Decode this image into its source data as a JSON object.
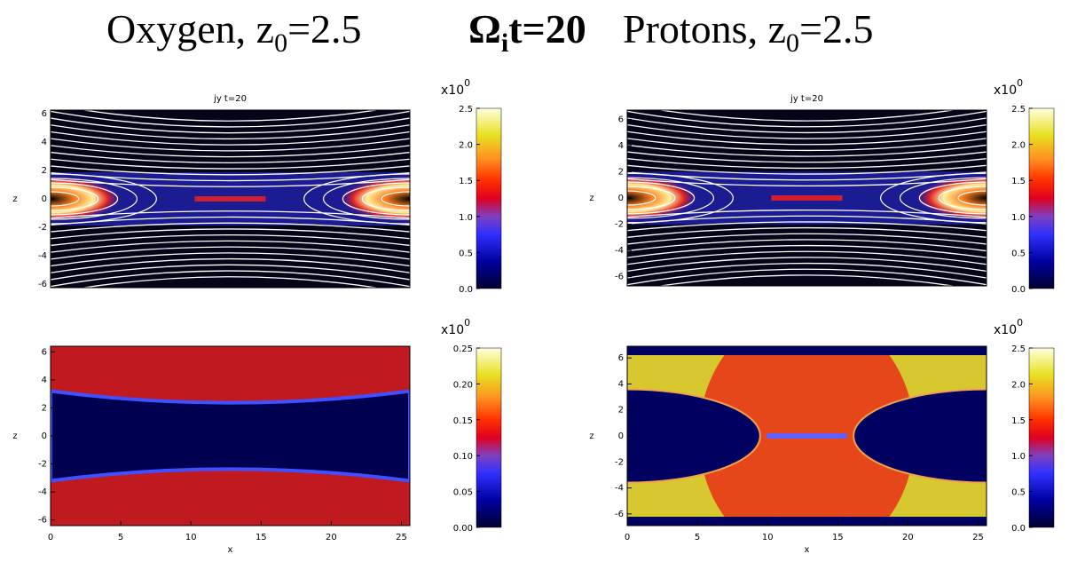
{
  "title": {
    "left": {
      "text": "Oxygen, z",
      "sub": "0",
      "rest": "=2.5"
    },
    "middle": {
      "text": "Ω",
      "sub": "i",
      "rest": "t=20"
    },
    "right": {
      "text": "Protons, z",
      "sub": "0",
      "rest": "=2.5"
    }
  },
  "panels": [
    {
      "title": "jy t=20",
      "xlim": [
        0,
        25.6
      ],
      "ylim": [
        -6.25,
        6.25
      ],
      "yticks": [
        -6,
        -4,
        -2,
        0,
        2,
        4,
        6
      ],
      "ylabel": "z",
      "colorbar": {
        "exponent": {
          "base": "x10",
          "power": "0"
        },
        "lim": [
          0,
          2.5
        ],
        "ticks": [
          {
            "value": 0,
            "label": "0.0"
          },
          0.5,
          {
            "value": 1,
            "label": "1.0"
          },
          1.5,
          {
            "value": 2,
            "label": "2.0"
          },
          2.5
        ]
      }
    },
    {
      "title": "jy t=20",
      "xlim": [
        0,
        25.6
      ],
      "ylim": [
        -6.7,
        6.7
      ],
      "yticks": [
        -6,
        -4,
        -2,
        0,
        2,
        4,
        6
      ],
      "ylabel": "z",
      "colorbar": {
        "exponent": {
          "base": "x10",
          "power": "0"
        },
        "lim": [
          0,
          2.5
        ],
        "ticks": [
          {
            "value": 0,
            "label": "0.0"
          },
          0.5,
          {
            "value": 1,
            "label": "1.0"
          },
          1.5,
          {
            "value": 2,
            "label": "2.0"
          },
          2.5
        ]
      }
    },
    {
      "xlim": [
        0,
        25.6
      ],
      "ylim": [
        -6.4,
        6.4
      ],
      "xticks": [
        0,
        5,
        10,
        15,
        20,
        25
      ],
      "yticks": [
        -6,
        -4,
        -2,
        0,
        2,
        4,
        6
      ],
      "xlabel": "x",
      "ylabel": "z",
      "colorbar": {
        "exponent": {
          "base": "x10",
          "power": "0"
        },
        "lim": [
          0,
          0.25
        ],
        "ticks": [
          {
            "value": 0,
            "label": "0.00"
          },
          0.05,
          {
            "value": 0.1,
            "label": "0.10"
          },
          0.15,
          {
            "value": 0.2,
            "label": "0.20"
          },
          0.25
        ]
      }
    },
    {
      "xlim": [
        0,
        25.6
      ],
      "ylim": [
        -6.9,
        6.9
      ],
      "xticks": [
        0,
        5,
        10,
        15,
        20,
        25
      ],
      "yticks": [
        -6,
        -4,
        -2,
        0,
        2,
        4,
        6
      ],
      "xlabel": "x",
      "ylabel": "z",
      "colorbar": {
        "exponent": {
          "base": "x10",
          "power": "0"
        },
        "lim": [
          0,
          2.5
        ],
        "ticks": [
          {
            "value": 0,
            "label": "0.0"
          },
          0.5,
          {
            "value": 1,
            "label": "1.0"
          },
          1.5,
          {
            "value": 2,
            "label": "2.0"
          },
          2.5
        ]
      }
    }
  ]
}
